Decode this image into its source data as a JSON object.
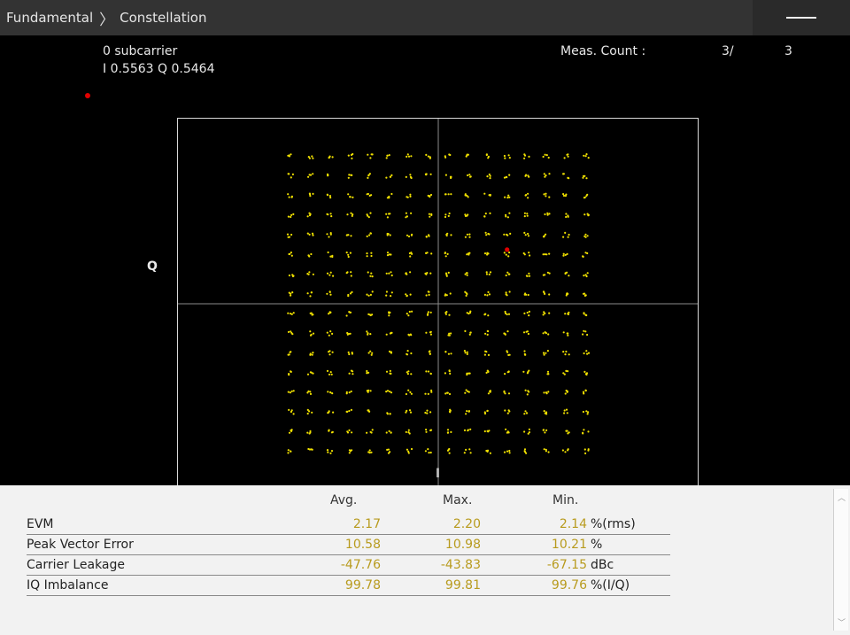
{
  "titlebar": {
    "crumb_parent": "Fundamental",
    "crumb_separator": "〉",
    "crumb_current": "Constellation"
  },
  "marker": {
    "label": "0 subcarrier",
    "iq": "I 0.5563 Q 0.5464",
    "color": "#e00000"
  },
  "meas": {
    "label": "Meas. Count :",
    "current": "3/",
    "total": "3"
  },
  "axes": {
    "x_label": "I",
    "y_label": "Q"
  },
  "chart_data": {
    "type": "scatter",
    "title": "",
    "xlabel": "I",
    "ylabel": "Q",
    "modulation_grid": {
      "columns": 16,
      "rows": 16,
      "x_levels": [
        -15,
        -13,
        -11,
        -9,
        -7,
        -5,
        -3,
        -1,
        1,
        3,
        5,
        7,
        9,
        11,
        13,
        15
      ],
      "y_levels": [
        -15,
        -13,
        -11,
        -9,
        -7,
        -5,
        -3,
        -1,
        1,
        3,
        5,
        7,
        9,
        11,
        13,
        15
      ]
    },
    "point_color": "#f0e000",
    "marker_point": {
      "I": 0.5563,
      "Q": 0.5464,
      "color": "#e00000"
    },
    "grid": "center crosshair"
  },
  "results": {
    "headers": {
      "avg": "Avg.",
      "max": "Max.",
      "min": "Min."
    },
    "rows": [
      {
        "name": "EVM",
        "avg": "2.17",
        "max": "2.20",
        "min": "2.14",
        "unit": "%(rms)"
      },
      {
        "name": "Peak Vector Error",
        "avg": "10.58",
        "max": "10.98",
        "min": "10.21",
        "unit": "%"
      },
      {
        "name": "Carrier Leakage",
        "avg": "-47.76",
        "max": "-43.83",
        "min": "-67.15",
        "unit": "dBc"
      },
      {
        "name": "IQ Imbalance",
        "avg": "99.78",
        "max": "99.81",
        "min": "99.76",
        "unit": "%(I/Q)"
      }
    ]
  },
  "icons": {
    "menu": "hamburger-icon",
    "scroll_up": "chevron-up-icon",
    "scroll_down": "chevron-down-icon"
  }
}
